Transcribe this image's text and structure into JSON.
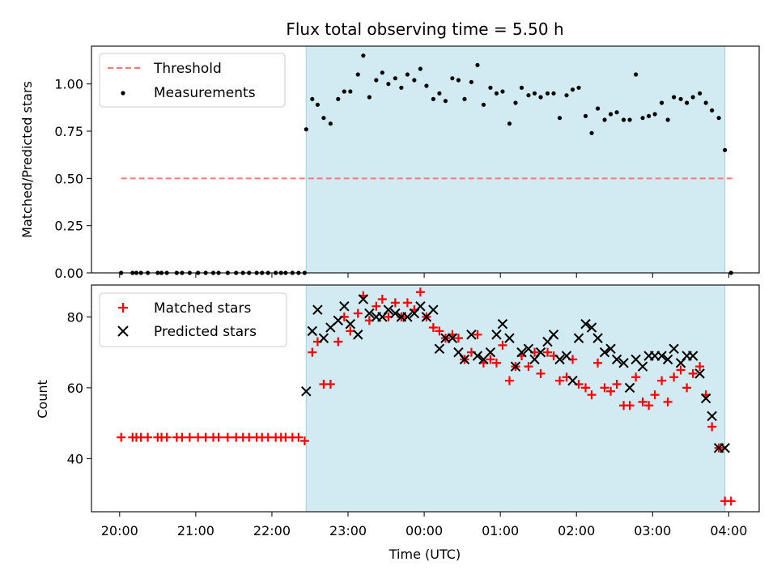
{
  "chart_data": [
    {
      "type": "scatter",
      "title": "Flux total observing time = 5.50 h",
      "xlabel": "",
      "ylabel": "Matched/Predicted stars",
      "x_unit": "hours since 20:00 UTC",
      "xlim": [
        -0.37,
        8.4
      ],
      "ylim": [
        0,
        1.2
      ],
      "y_ticks": [
        "0.00",
        "0.25",
        "0.50",
        "0.75",
        "1.00"
      ],
      "y_tick_values": [
        0,
        0.25,
        0.5,
        0.75,
        1.0
      ],
      "shaded_span": [
        2.45,
        7.95
      ],
      "legend": [
        {
          "label": "Threshold",
          "marker": "dashed-line",
          "color": "#ff7777"
        },
        {
          "label": "Measurements",
          "marker": "dot",
          "color": "#000000"
        }
      ],
      "series": [
        {
          "name": "Threshold",
          "style": "dashed-line",
          "x": [
            0.02,
            8.05
          ],
          "y": [
            0.5,
            0.5
          ]
        },
        {
          "name": "Measurements",
          "style": "dot",
          "x": [
            0.02,
            0.17,
            0.22,
            0.28,
            0.37,
            0.5,
            0.55,
            0.62,
            0.75,
            0.82,
            0.92,
            1.03,
            1.13,
            1.23,
            1.3,
            1.42,
            1.53,
            1.62,
            1.7,
            1.8,
            1.87,
            1.95,
            2.05,
            2.12,
            2.18,
            2.27,
            2.35,
            2.43,
            2.45,
            2.53,
            2.6,
            2.68,
            2.77,
            2.87,
            2.95,
            3.03,
            3.13,
            3.2,
            3.28,
            3.37,
            3.45,
            3.53,
            3.62,
            3.7,
            3.78,
            3.87,
            3.95,
            4.03,
            4.12,
            4.2,
            4.28,
            4.37,
            4.45,
            4.53,
            4.62,
            4.7,
            4.78,
            4.87,
            4.95,
            5.03,
            5.12,
            5.2,
            5.28,
            5.37,
            5.45,
            5.53,
            5.62,
            5.7,
            5.78,
            5.87,
            5.95,
            6.03,
            6.12,
            6.2,
            6.28,
            6.37,
            6.45,
            6.53,
            6.62,
            6.7,
            6.78,
            6.87,
            6.95,
            7.03,
            7.12,
            7.2,
            7.28,
            7.37,
            7.45,
            7.53,
            7.62,
            7.7,
            7.78,
            7.87,
            7.95,
            8.03
          ],
          "y": [
            0,
            0,
            0,
            0,
            0,
            0,
            0,
            0,
            0,
            0,
            0,
            0,
            0,
            0,
            0,
            0,
            0,
            0,
            0,
            0,
            0,
            0,
            0,
            0,
            0,
            0,
            0,
            0,
            0.76,
            0.92,
            0.89,
            0.82,
            0.79,
            0.92,
            0.96,
            0.96,
            1.05,
            1.15,
            0.93,
            1.02,
            1.06,
            1.0,
            1.03,
            0.98,
            1.05,
            1.02,
            1.08,
            0.99,
            0.92,
            0.95,
            0.91,
            1.03,
            1.02,
            0.92,
            1.01,
            1.1,
            0.89,
            0.98,
            0.95,
            0.96,
            0.79,
            0.9,
            0.98,
            0.94,
            0.95,
            0.93,
            0.95,
            0.95,
            0.82,
            0.94,
            0.97,
            0.98,
            0.83,
            0.74,
            0.87,
            0.81,
            0.84,
            0.85,
            0.81,
            0.81,
            1.05,
            0.82,
            0.83,
            0.84,
            0.9,
            0.81,
            0.93,
            0.92,
            0.9,
            0.93,
            0.95,
            0.9,
            0.86,
            0.82,
            0.65,
            0
          ]
        }
      ]
    },
    {
      "type": "scatter",
      "title": "",
      "xlabel": "Time (UTC)",
      "ylabel": "Count",
      "x_unit": "hours since 20:00 UTC",
      "xlim": [
        -0.37,
        8.4
      ],
      "ylim": [
        25,
        89
      ],
      "x_ticks": [
        "20:00",
        "21:00",
        "22:00",
        "23:00",
        "00:00",
        "01:00",
        "02:00",
        "03:00",
        "04:00"
      ],
      "x_tick_values": [
        0,
        1,
        2,
        3,
        4,
        5,
        6,
        7,
        8
      ],
      "y_ticks": [
        "40",
        "60",
        "80"
      ],
      "y_tick_values": [
        40,
        60,
        80
      ],
      "shaded_span": [
        2.45,
        7.95
      ],
      "legend": [
        {
          "label": "Matched stars",
          "marker": "plus",
          "color": "#ff0000"
        },
        {
          "label": "Predicted stars",
          "marker": "x",
          "color": "#000000"
        }
      ],
      "series": [
        {
          "name": "Matched stars",
          "style": "plus",
          "x": [
            0.02,
            0.17,
            0.22,
            0.28,
            0.37,
            0.5,
            0.55,
            0.62,
            0.75,
            0.82,
            0.92,
            1.03,
            1.13,
            1.23,
            1.3,
            1.42,
            1.53,
            1.62,
            1.7,
            1.8,
            1.87,
            1.95,
            2.05,
            2.12,
            2.18,
            2.27,
            2.35,
            2.43,
            2.53,
            2.6,
            2.68,
            2.77,
            2.87,
            2.95,
            3.03,
            3.13,
            3.2,
            3.28,
            3.37,
            3.45,
            3.53,
            3.62,
            3.7,
            3.78,
            3.87,
            3.95,
            4.03,
            4.12,
            4.2,
            4.28,
            4.37,
            4.45,
            4.53,
            4.62,
            4.7,
            4.78,
            4.87,
            4.95,
            5.03,
            5.12,
            5.2,
            5.28,
            5.37,
            5.45,
            5.53,
            5.62,
            5.7,
            5.78,
            5.87,
            5.95,
            6.03,
            6.12,
            6.2,
            6.28,
            6.37,
            6.45,
            6.53,
            6.62,
            6.7,
            6.78,
            6.87,
            6.95,
            7.03,
            7.12,
            7.2,
            7.28,
            7.37,
            7.45,
            7.53,
            7.62,
            7.7,
            7.78,
            7.87,
            7.95,
            8.03
          ],
          "y": [
            46,
            46,
            46,
            46,
            46,
            46,
            46,
            46,
            46,
            46,
            46,
            46,
            46,
            46,
            46,
            46,
            46,
            46,
            46,
            46,
            46,
            46,
            46,
            46,
            46,
            46,
            46,
            45,
            70,
            73,
            61,
            61,
            73,
            80,
            76,
            81,
            86,
            79,
            83,
            85,
            80,
            84,
            80,
            84,
            82,
            87,
            80,
            77,
            76,
            74,
            75,
            74,
            68,
            70,
            75,
            67,
            68,
            67,
            72,
            62,
            66,
            69,
            66,
            70,
            64,
            70,
            69,
            62,
            63,
            68,
            61,
            60,
            58,
            67,
            60,
            59,
            61,
            55,
            55,
            63,
            56,
            55,
            58,
            62,
            56,
            63,
            65,
            60,
            64,
            66,
            58,
            49,
            43,
            28,
            28
          ]
        },
        {
          "name": "Predicted stars",
          "style": "x",
          "x": [
            2.45,
            2.53,
            2.6,
            2.68,
            2.77,
            2.87,
            2.95,
            3.03,
            3.13,
            3.2,
            3.28,
            3.37,
            3.45,
            3.53,
            3.62,
            3.7,
            3.78,
            3.87,
            3.95,
            4.03,
            4.12,
            4.2,
            4.28,
            4.37,
            4.45,
            4.53,
            4.62,
            4.7,
            4.78,
            4.87,
            4.95,
            5.03,
            5.12,
            5.2,
            5.28,
            5.37,
            5.45,
            5.53,
            5.62,
            5.7,
            5.78,
            5.87,
            5.95,
            6.03,
            6.12,
            6.2,
            6.28,
            6.37,
            6.45,
            6.53,
            6.62,
            6.7,
            6.78,
            6.87,
            6.95,
            7.03,
            7.12,
            7.2,
            7.28,
            7.37,
            7.45,
            7.53,
            7.62,
            7.7,
            7.78,
            7.87,
            7.95
          ],
          "y": [
            59,
            76,
            82,
            74,
            77,
            79,
            83,
            78,
            75,
            85,
            81,
            80,
            80,
            82,
            81,
            80,
            80,
            81,
            83,
            80,
            82,
            71,
            74,
            74,
            70,
            68,
            75,
            69,
            68,
            70,
            75,
            78,
            74,
            66,
            70,
            71,
            68,
            70,
            73,
            75,
            68,
            69,
            62,
            74,
            78,
            77,
            74,
            70,
            71,
            68,
            67,
            60,
            68,
            66,
            69,
            69,
            69,
            68,
            71,
            67,
            69,
            69,
            64,
            57,
            52,
            43,
            43
          ]
        }
      ]
    }
  ]
}
